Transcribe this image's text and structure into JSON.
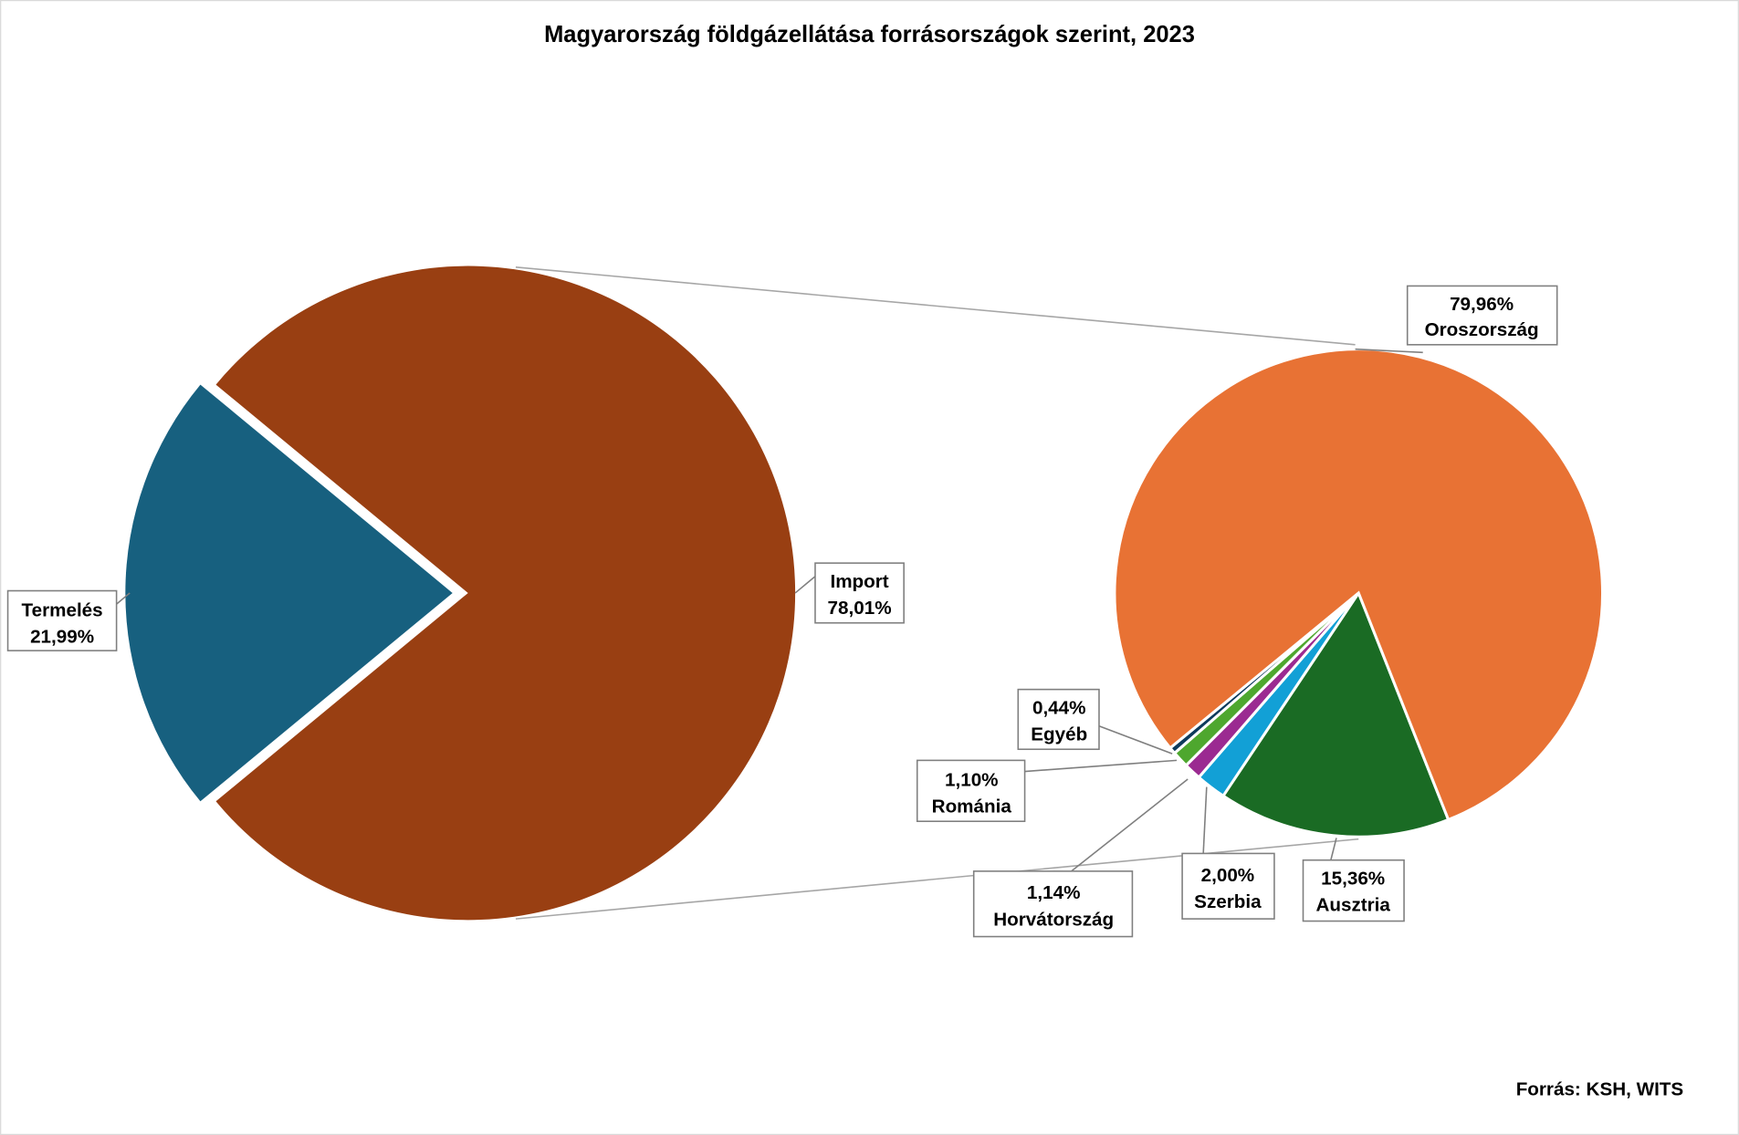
{
  "chart_data": {
    "type": "pie",
    "title": "Magyarország földgázellátása forrásországok szerint, 2023",
    "source": "Forrás: KSH, WITS",
    "main_pie": [
      {
        "name": "Termelés",
        "value": 21.99,
        "label": "21,99%",
        "color": "#17607f",
        "exploded": true
      },
      {
        "name": "Import",
        "value": 78.01,
        "label": "78,01%",
        "color": "#993f12"
      }
    ],
    "secondary_pie": {
      "parent": "Import",
      "slices": [
        {
          "name": "Ausztria",
          "value": 15.36,
          "label": "15,36%",
          "color": "#1a6b24"
        },
        {
          "name": "Szerbia",
          "value": 2.0,
          "label": "2,00%",
          "color": "#12a0d6"
        },
        {
          "name": "Horvátország",
          "value": 1.14,
          "label": "1,14%",
          "color": "#9b2a91"
        },
        {
          "name": "Románia",
          "value": 1.1,
          "label": "1,10%",
          "color": "#4ea72e"
        },
        {
          "name": "Egyéb",
          "value": 0.44,
          "label": "0,44%",
          "color": "#0d3a5c"
        },
        {
          "name": "Oroszország",
          "value": 79.96,
          "label": "79,96%",
          "color": "#e87234"
        }
      ]
    }
  }
}
